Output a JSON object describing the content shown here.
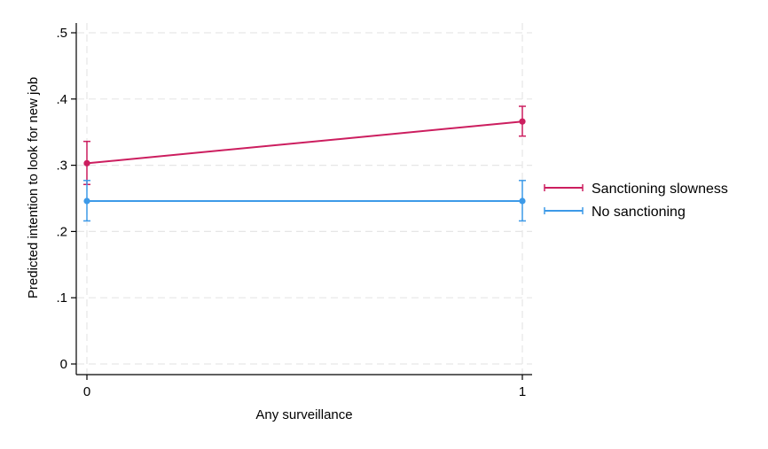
{
  "chart_data": {
    "type": "line",
    "xlabel": "Any surveillance",
    "ylabel": "Predicted intention to look for new job",
    "x": [
      0,
      1
    ],
    "x_tick_labels": [
      "0",
      "1"
    ],
    "ylim": [
      0,
      0.5
    ],
    "y_ticks": [
      0,
      0.1,
      0.2,
      0.3,
      0.4,
      0.5
    ],
    "y_tick_labels": [
      "0",
      ".1",
      ".2",
      ".3",
      ".4",
      ".5"
    ],
    "grid": true,
    "legend_position": "right",
    "series": [
      {
        "name": "Sanctioning slowness",
        "color": "#cc1e5f",
        "values": [
          0.303,
          0.366
        ],
        "ci_low": [
          0.271,
          0.344
        ],
        "ci_high": [
          0.336,
          0.389
        ]
      },
      {
        "name": "No sanctioning",
        "color": "#3d9ae8",
        "values": [
          0.246,
          0.246
        ],
        "ci_low": [
          0.216,
          0.216
        ],
        "ci_high": [
          0.277,
          0.277
        ]
      }
    ]
  }
}
